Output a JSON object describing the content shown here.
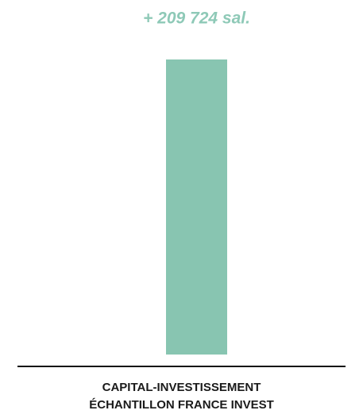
{
  "chart_data": {
    "type": "bar",
    "categories": [
      "CAPITAL-INVESTISSEMENT\nÉCHANTILLON FRANCE INVEST"
    ],
    "values": [
      209724
    ],
    "value_labels": [
      "+ 209 724 sal."
    ],
    "color": "#88c5b1"
  }
}
